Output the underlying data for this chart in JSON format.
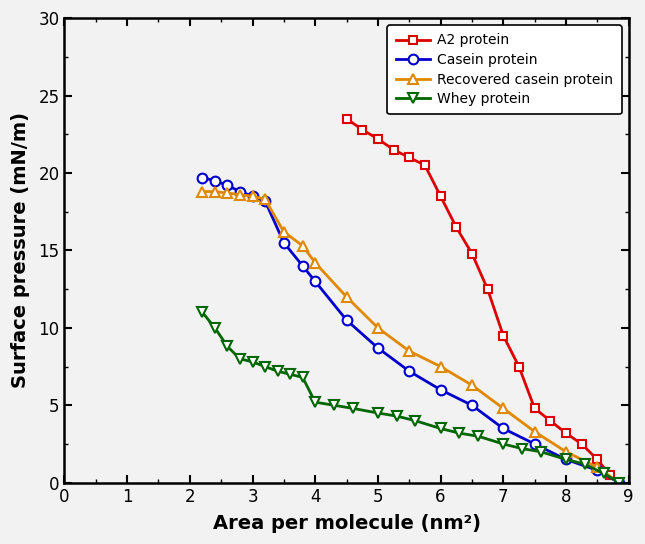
{
  "a2_protein": {
    "x": [
      4.5,
      4.75,
      5.0,
      5.25,
      5.5,
      5.75,
      6.0,
      6.25,
      6.5,
      6.75,
      7.0,
      7.25,
      7.5,
      7.75,
      8.0,
      8.25,
      8.5,
      8.7,
      8.85
    ],
    "y": [
      23.5,
      22.8,
      22.2,
      21.5,
      21.0,
      20.5,
      18.5,
      16.5,
      14.8,
      12.5,
      9.5,
      7.5,
      4.8,
      4.0,
      3.2,
      2.5,
      1.5,
      0.5,
      0.0
    ],
    "color": "#dd0000",
    "marker": "s",
    "label": "A2 protein",
    "markersize": 6,
    "linewidth": 2.0,
    "markerfacecolor": "white",
    "markeredgewidth": 1.5
  },
  "casein_protein": {
    "x": [
      2.2,
      2.4,
      2.6,
      2.8,
      3.0,
      3.2,
      3.5,
      3.8,
      4.0,
      4.5,
      5.0,
      5.5,
      6.0,
      6.5,
      7.0,
      7.5,
      8.0,
      8.5,
      8.85
    ],
    "y": [
      19.7,
      19.5,
      19.2,
      18.8,
      18.5,
      18.2,
      15.5,
      14.0,
      13.0,
      10.5,
      8.7,
      7.2,
      6.0,
      5.0,
      3.5,
      2.5,
      1.5,
      0.8,
      0.0
    ],
    "color": "#0000cc",
    "marker": "o",
    "label": "Casein protein",
    "markersize": 7,
    "linewidth": 2.0,
    "markerfacecolor": "white",
    "markeredgewidth": 1.5
  },
  "recovered_casein": {
    "x": [
      2.2,
      2.4,
      2.6,
      2.8,
      3.0,
      3.2,
      3.5,
      3.8,
      4.0,
      4.5,
      5.0,
      5.5,
      6.0,
      6.5,
      7.0,
      7.5,
      8.0,
      8.5,
      8.85
    ],
    "y": [
      18.8,
      18.8,
      18.7,
      18.6,
      18.5,
      18.3,
      16.2,
      15.3,
      14.2,
      12.0,
      10.0,
      8.5,
      7.5,
      6.3,
      4.8,
      3.3,
      2.0,
      1.0,
      0.0
    ],
    "color": "#e08800",
    "marker": "^",
    "label": "Recovered casein protein",
    "markersize": 7,
    "linewidth": 2.0,
    "markerfacecolor": "white",
    "markeredgewidth": 1.5
  },
  "whey_protein": {
    "x": [
      2.2,
      2.4,
      2.6,
      2.8,
      3.0,
      3.2,
      3.4,
      3.6,
      3.8,
      4.0,
      4.3,
      4.6,
      5.0,
      5.3,
      5.6,
      6.0,
      6.3,
      6.6,
      7.0,
      7.3,
      7.6,
      8.0,
      8.3,
      8.6,
      8.85
    ],
    "y": [
      11.0,
      10.0,
      8.8,
      8.0,
      7.8,
      7.5,
      7.2,
      7.0,
      6.8,
      5.2,
      5.0,
      4.8,
      4.5,
      4.3,
      4.0,
      3.5,
      3.2,
      3.0,
      2.5,
      2.2,
      2.0,
      1.5,
      1.2,
      0.6,
      0.0
    ],
    "color": "#006600",
    "marker": "v",
    "label": "Whey protein",
    "markersize": 7,
    "linewidth": 2.0,
    "markerfacecolor": "white",
    "markeredgewidth": 1.5
  },
  "xlabel": "Area per molecule (nm²)",
  "ylabel": "Surface pressure (mN/m)",
  "xlim": [
    0,
    9
  ],
  "ylim": [
    0,
    30
  ],
  "xticks": [
    0,
    1,
    2,
    3,
    4,
    5,
    6,
    7,
    8,
    9
  ],
  "yticks": [
    0,
    5,
    10,
    15,
    20,
    25,
    30
  ],
  "legend_loc": "upper right",
  "figsize": [
    6.45,
    5.44
  ],
  "dpi": 100,
  "bg_color": "#f2f2f2"
}
